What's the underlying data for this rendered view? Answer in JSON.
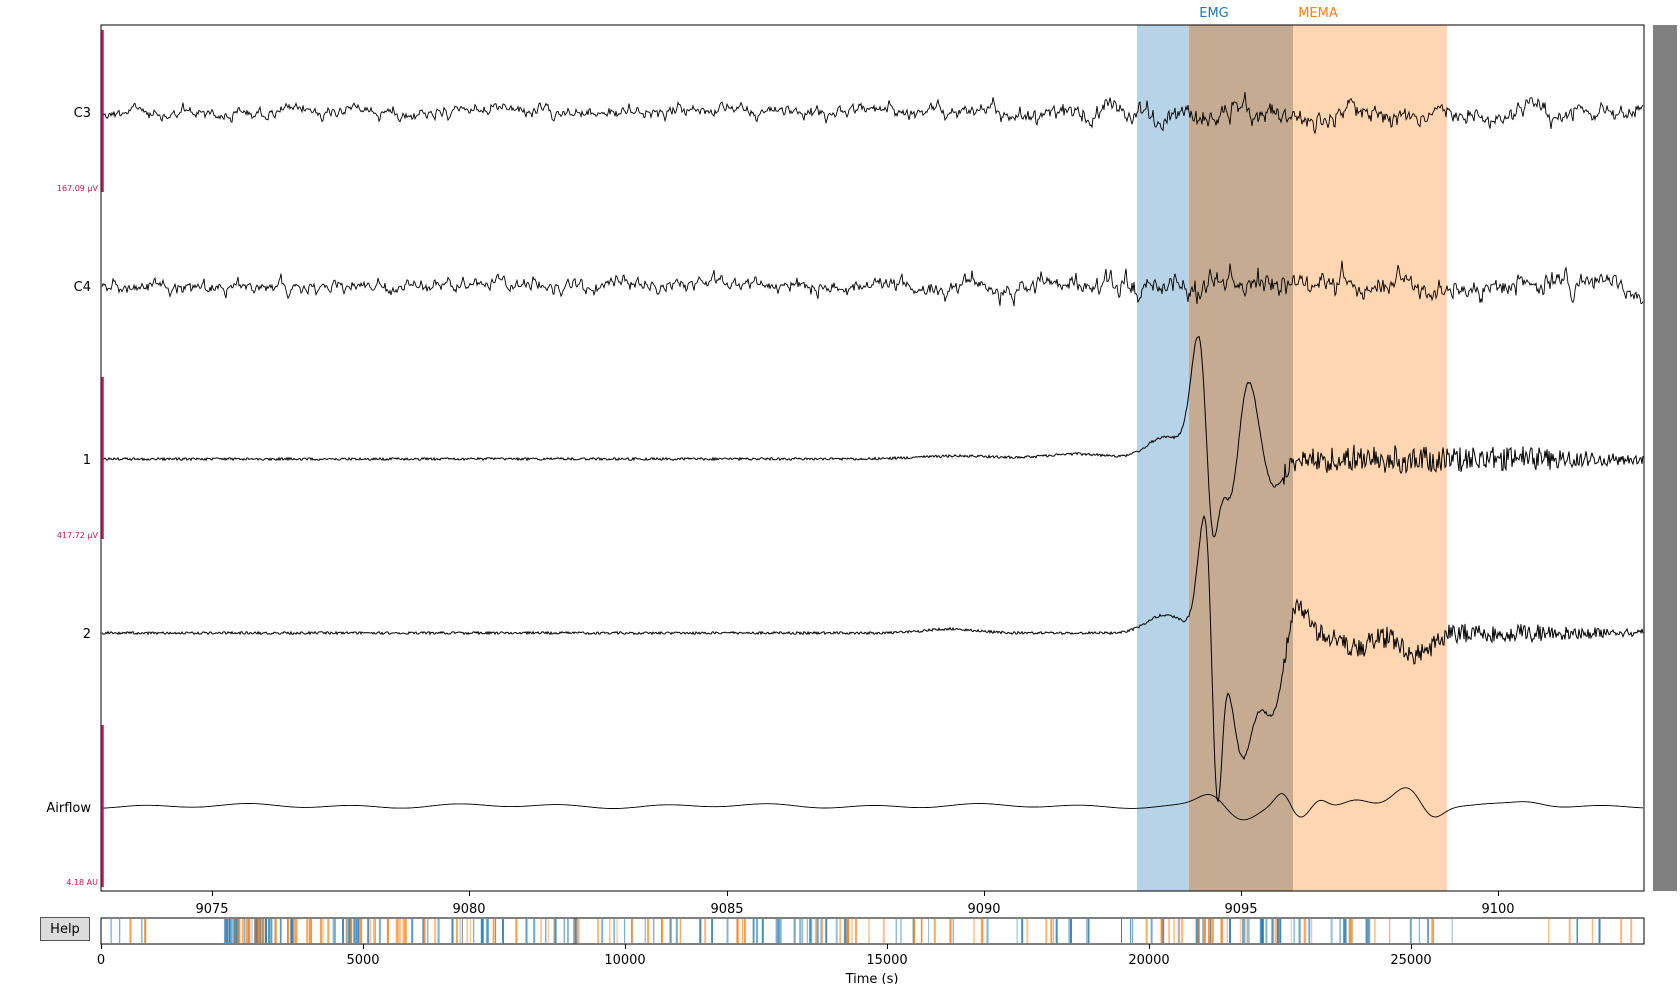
{
  "help_button": {
    "label": "Help"
  },
  "channels": [
    {
      "name": "C3",
      "type": "eeg"
    },
    {
      "name": "C4",
      "type": "eeg"
    },
    {
      "name": "1",
      "type": "emg"
    },
    {
      "name": "2",
      "type": "emg"
    },
    {
      "name": "Airflow",
      "type": "resp"
    }
  ],
  "scale_bars": [
    {
      "label": "167.09 µV"
    },
    {
      "label": "417.72 µV"
    },
    {
      "label": "4.18 AU"
    }
  ],
  "annotations": [
    {
      "label": "EMG",
      "color": "#1f77b4"
    },
    {
      "label": "MEMA",
      "color": "#ff7f0e"
    }
  ],
  "main_axis": {
    "ticks": [
      "9075",
      "9080",
      "9085",
      "9090",
      "9095",
      "9100"
    ]
  },
  "overview_axis": {
    "ticks": [
      "0",
      "5000",
      "10000",
      "15000",
      "20000",
      "25000"
    ],
    "xlabel": "Time (s)"
  },
  "colors": {
    "trace": "#000000",
    "scale_bar": "#c2185b",
    "emg_annotation": "#1f77b4",
    "mema_annotation": "#ff7f0e",
    "scrollbar": "#808080"
  },
  "chart_data": {
    "type": "line",
    "title": "",
    "xlabel": "",
    "xlim": [
      9072.8,
      9102.8
    ],
    "annotation_spans": [
      {
        "label": "EMG",
        "start": 9093.0,
        "end": 9095.0
      },
      {
        "label": "EMG+MEMA overlap",
        "start": 9094.0,
        "end": 9096.0
      },
      {
        "label": "MEMA",
        "start": 9096.0,
        "end": 9099.0
      }
    ],
    "overview": {
      "xlim": [
        0,
        29500
      ],
      "xlabel": "Time (s)",
      "view_window": [
        9072.8,
        9102.8
      ]
    }
  }
}
